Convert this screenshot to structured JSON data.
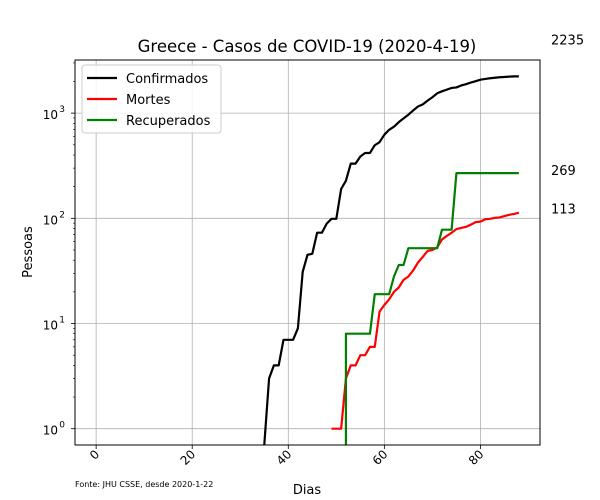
{
  "chart_data": {
    "type": "line",
    "title": "Greece - Casos de COVID-19 (2020-4-19)",
    "xlabel": "Dias",
    "ylabel": "Pessoas",
    "yscale": "log",
    "xlim": [
      -4.4,
      92.4
    ],
    "ylim": [
      0.7,
      3200
    ],
    "grid": true,
    "legend_position": "upper-left",
    "footnote": "Fonte: JHU CSSE, desde 2020-1-22",
    "x_ticks": [
      0,
      20,
      40,
      60,
      80
    ],
    "x_tick_labels": [
      "0",
      "20",
      "40",
      "60",
      "80"
    ],
    "y_ticks": [
      1,
      10,
      100,
      1000
    ],
    "y_tick_labels": [
      "10",
      "10",
      "10",
      "10"
    ],
    "y_tick_exponents": [
      "0",
      "1",
      "2",
      "3"
    ],
    "series": [
      {
        "name": "Confirmados",
        "color": "#000000",
        "final_label": "2235",
        "x": [
          35,
          36,
          37,
          38,
          39,
          40,
          41,
          42,
          43,
          44,
          45,
          46,
          47,
          48,
          49,
          50,
          51,
          52,
          53,
          54,
          55,
          56,
          57,
          58,
          59,
          60,
          61,
          62,
          63,
          64,
          65,
          66,
          67,
          68,
          69,
          70,
          71,
          72,
          73,
          74,
          75,
          76,
          77,
          78,
          79,
          80,
          81,
          82,
          83,
          84,
          85,
          86,
          87,
          88
        ],
        "y": [
          0.7,
          3,
          4,
          4,
          7,
          7,
          7,
          9,
          31,
          45,
          46,
          73,
          73,
          89,
          99,
          99,
          190,
          228,
          331,
          331,
          387,
          418,
          418,
          495,
          530,
          624,
          695,
          743,
          821,
          892,
          966,
          1061,
          1156,
          1212,
          1314,
          1415,
          1544,
          1613,
          1673,
          1735,
          1755,
          1832,
          1884,
          1955,
          2011,
          2081,
          2114,
          2145,
          2170,
          2192,
          2207,
          2224,
          2235,
          2235
        ]
      },
      {
        "name": "Mortes",
        "color": "#ff0000",
        "final_label": "113",
        "x": [
          49,
          50,
          51,
          52,
          53,
          54,
          55,
          56,
          57,
          58,
          59,
          60,
          61,
          62,
          63,
          64,
          65,
          66,
          67,
          68,
          69,
          70,
          71,
          72,
          73,
          74,
          75,
          76,
          77,
          78,
          79,
          80,
          81,
          82,
          83,
          84,
          85,
          86,
          87,
          88
        ],
        "y": [
          1,
          1,
          1,
          3,
          4,
          4,
          5,
          5,
          6,
          6,
          13,
          15,
          17,
          20,
          22,
          26,
          28,
          32,
          38,
          43,
          49,
          50,
          53,
          63,
          68,
          73,
          79,
          81,
          83,
          87,
          92,
          93,
          98,
          99,
          101,
          102,
          105,
          108,
          110,
          113
        ]
      },
      {
        "name": "Recuperados",
        "color": "#008000",
        "final_label": "269",
        "x": [
          52,
          52,
          53,
          54,
          55,
          56,
          57,
          58,
          59,
          60,
          61,
          62,
          63,
          64,
          65,
          66,
          67,
          68,
          69,
          70,
          71,
          72,
          73,
          74,
          75,
          76,
          77,
          78,
          79,
          80,
          81,
          82,
          83,
          84,
          85,
          86,
          87,
          88
        ],
        "y": [
          0.7,
          8,
          8,
          8,
          8,
          8,
          8,
          19,
          19,
          19,
          19,
          28,
          36,
          36,
          52,
          52,
          52,
          52,
          52,
          52,
          52,
          78,
          78,
          78,
          269,
          269,
          269,
          269,
          269,
          269,
          269,
          269,
          269,
          269,
          269,
          269,
          269,
          269
        ]
      }
    ]
  }
}
